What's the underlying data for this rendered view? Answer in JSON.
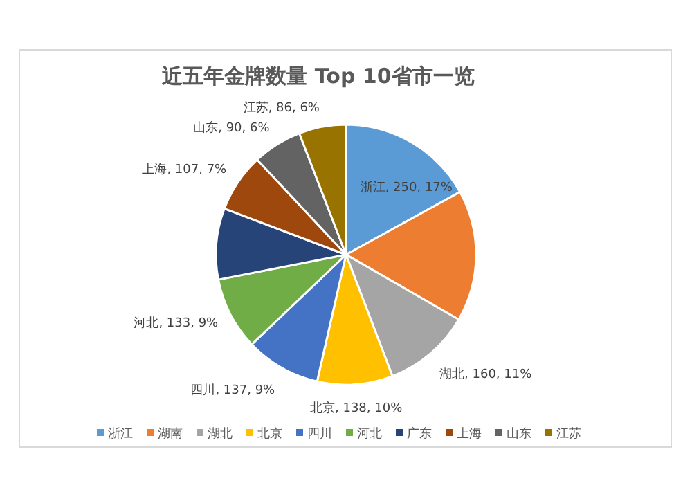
{
  "chart_data": {
    "type": "pie",
    "title": "近五年金牌数量 Top 10省市一览",
    "categories": [
      "浙江",
      "湖南",
      "湖北",
      "北京",
      "四川",
      "河北",
      "广东",
      "上海",
      "山东",
      "江苏"
    ],
    "values": [
      250,
      240,
      160,
      138,
      137,
      133,
      130,
      107,
      90,
      86
    ],
    "value_labels": [
      "浙江, 250, 17%",
      null,
      "湖北, 160, 11%",
      "北京, 138, 10%",
      "四川, 137, 9%",
      "河北, 133, 9%",
      null,
      "上海, 107, 7%",
      "山东, 90, 6%",
      "江苏, 86, 6%"
    ],
    "colors": [
      "#5b9bd5",
      "#ed7d31",
      "#a5a5a5",
      "#ffc000",
      "#4472c4",
      "#70ad47",
      "#264478",
      "#9e480e",
      "#636363",
      "#997300"
    ],
    "legend": "bottom"
  }
}
